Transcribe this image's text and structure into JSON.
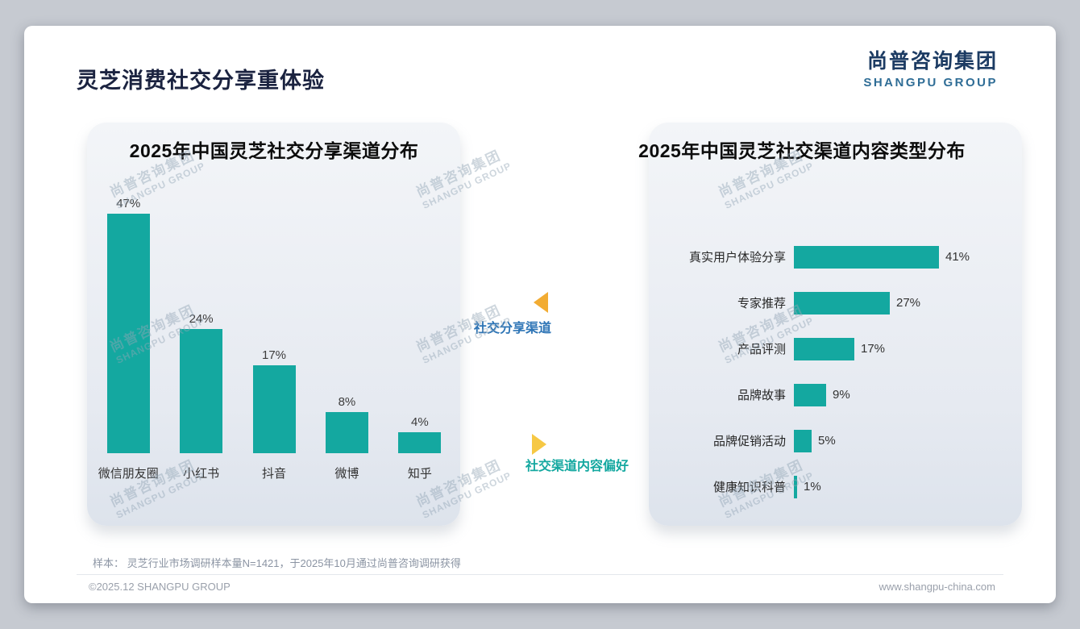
{
  "page": {
    "title": "灵芝消费社交分享重体验",
    "logo": {
      "cn": "尚普咨询集团",
      "en": "SHANGPU GROUP"
    },
    "watermark": {
      "cn": "尚普咨询集团",
      "en": "SHANGPU GROUP"
    },
    "sample_note": "样本： 灵芝行业市场调研样本量N=1421，于2025年10月通过尚普咨询调研获得",
    "footer_left": "©2025.12 SHANGPU GROUP",
    "footer_right": "www.shangpu-china.com"
  },
  "annotations": {
    "left_arrow_label": "社交分享渠道",
    "right_arrow_label": "社交渠道内容偏好"
  },
  "colors": {
    "bar": "#14a8a0",
    "arrow_orange": "#f2ac33",
    "arrow_yellow": "#f6c844",
    "label_blue": "#2e75b6",
    "label_teal": "#14a8a0"
  },
  "chart_data": [
    {
      "type": "bar",
      "orientation": "vertical",
      "title": "2025年中国灵芝社交分享渠道分布",
      "categories": [
        "微信朋友圈",
        "小红书",
        "抖音",
        "微博",
        "知乎"
      ],
      "values": [
        47,
        24,
        17,
        8,
        4
      ],
      "unit": "%",
      "ylim": [
        0,
        50
      ],
      "grid": false,
      "legend": "none"
    },
    {
      "type": "bar",
      "orientation": "horizontal",
      "title": "2025年中国灵芝社交渠道内容类型分布",
      "categories": [
        "真实用户体验分享",
        "专家推荐",
        "产品评测",
        "品牌故事",
        "品牌促销活动",
        "健康知识科普"
      ],
      "values": [
        41,
        27,
        17,
        9,
        5,
        1
      ],
      "unit": "%",
      "xlim": [
        0,
        45
      ],
      "grid": false,
      "legend": "none"
    }
  ]
}
